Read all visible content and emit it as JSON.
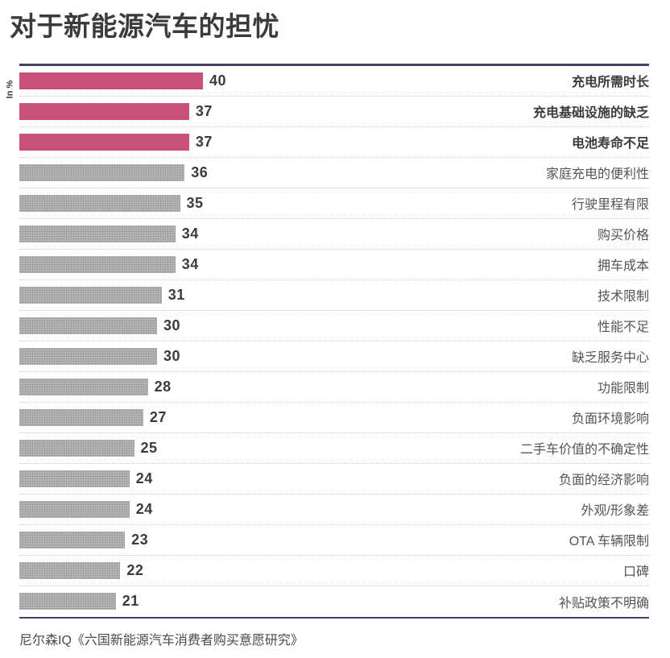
{
  "title": "对于新能源汽车的担忧",
  "axis_unit": "In %",
  "source": "尼尔森IQ《六国新能源汽车消费者购买意愿研究》",
  "colors": {
    "highlight_bar": "#c8507a",
    "default_bar": "#b5b5b5",
    "rule_line": "#44436a",
    "text": "#3b3b3b"
  },
  "chart_data": {
    "type": "bar",
    "orientation": "horizontal",
    "title": "对于新能源汽车的担忧",
    "unit_label": "In %",
    "xlabel": "",
    "ylabel": "",
    "xlim": [
      0,
      40
    ],
    "grid": false,
    "legend": "none",
    "data_labels": true,
    "categories": [
      "充电所需时长",
      "充电基础设施的缺乏",
      "电池寿命不足",
      "家庭充电的便利性",
      "行驶里程有限",
      "购买价格",
      "拥车成本",
      "技术限制",
      "性能不足",
      "缺乏服务中心",
      "功能限制",
      "负面环境影响",
      "二手车价值的不确定性",
      "负面的经济影响",
      "外观/形象差",
      "OTA 车辆限制",
      "口碑",
      "补贴政策不明确"
    ],
    "values": [
      40,
      37,
      37,
      36,
      35,
      34,
      34,
      31,
      30,
      30,
      28,
      27,
      25,
      24,
      24,
      23,
      22,
      21
    ],
    "highlight_indices": [
      0,
      1,
      2
    ],
    "source": "尼尔森IQ《六国新能源汽车消费者购买意愿研究》"
  }
}
